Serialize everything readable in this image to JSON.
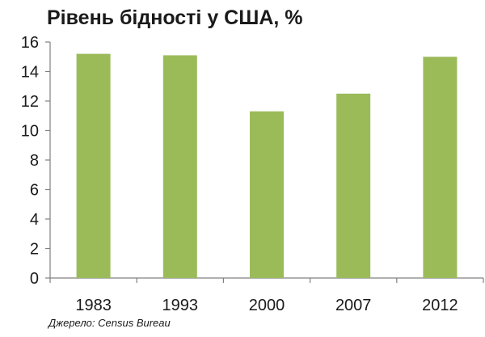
{
  "chart_data": {
    "type": "bar",
    "title": "Рівень бідності у США, %",
    "categories": [
      "1983",
      "1993",
      "2000",
      "2007",
      "2012"
    ],
    "values": [
      15.2,
      15.1,
      11.3,
      12.5,
      15.0
    ],
    "ylim": [
      0,
      16
    ],
    "yticks": [
      "0",
      "2",
      "4",
      "6",
      "8",
      "10",
      "12",
      "14",
      "16"
    ],
    "grid": false,
    "legend": "none",
    "bar_color": "#9bbb59",
    "source": "Джерело: Census Bureau"
  }
}
